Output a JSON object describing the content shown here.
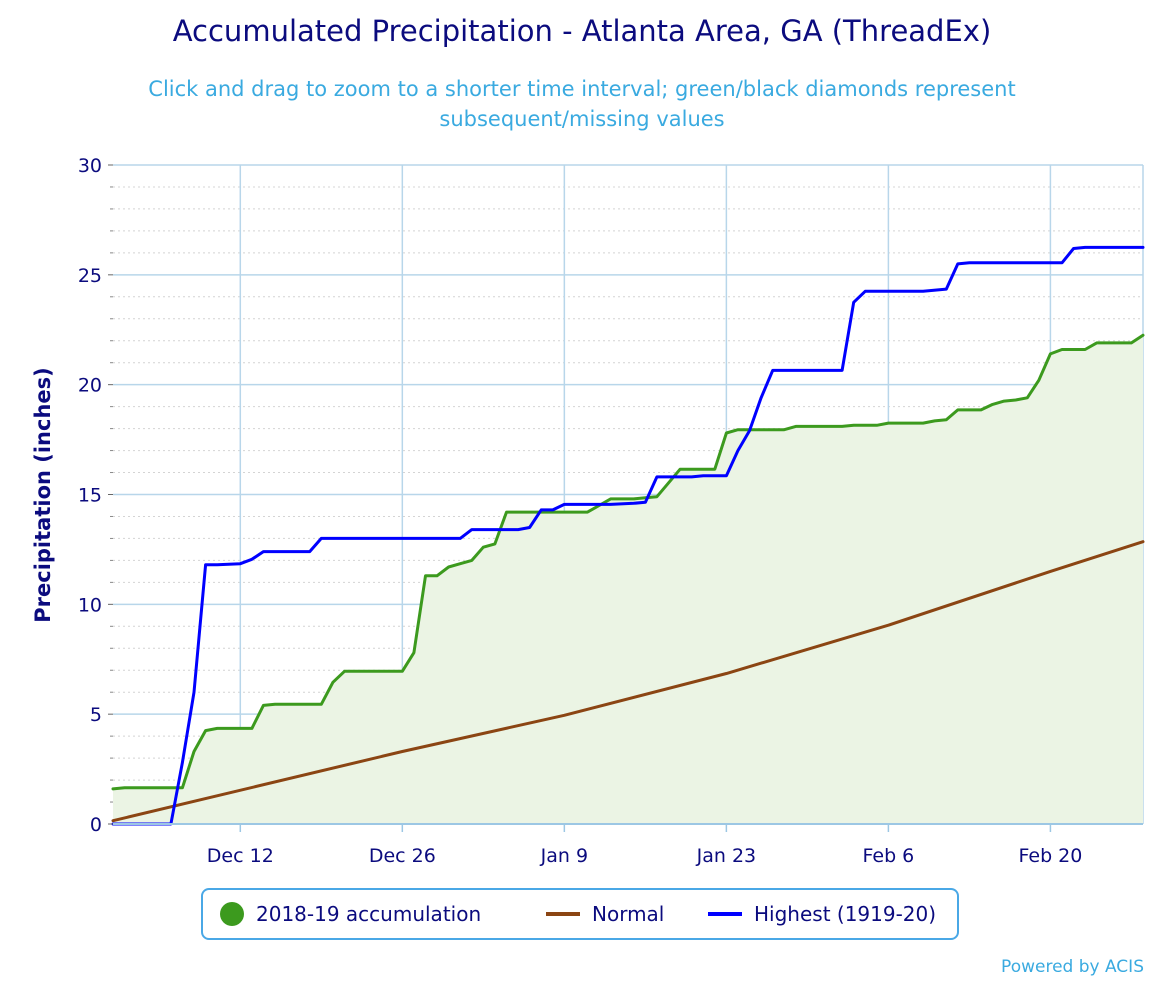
{
  "title": "Accumulated Precipitation - Atlanta Area, GA (ThreadEx)",
  "subtitle": "Click and drag to zoom to a shorter time interval; green/black diamonds represent subsequent/missing values",
  "credit": "Powered by ACIS",
  "legend": {
    "accum": "2018-19 accumulation",
    "normal": "Normal",
    "highest": "Highest (1919-20)"
  },
  "colors": {
    "accum": "#3c9a1e",
    "accum_fill": "#ebf4e4",
    "normal": "#8b4513",
    "highest": "#0000ff",
    "grid": "#b8d6ea",
    "axis_text": "#0b0b7e"
  },
  "chart_data": {
    "type": "line",
    "ylabel": "Precipitation (inches)",
    "xlabel": "",
    "x_ticks": [
      "Dec 12",
      "Dec 26",
      "Jan 9",
      "Jan 23",
      "Feb 6",
      "Feb 20"
    ],
    "y_ticks": [
      0,
      5,
      10,
      15,
      20,
      25,
      30
    ],
    "ylim": [
      0,
      30
    ],
    "xlim": [
      "2018-12-01",
      "2019-02-28"
    ],
    "grid": true,
    "legend_position": "bottom",
    "series": [
      {
        "name": "2018-19 accumulation",
        "key": "accum",
        "filled": true,
        "points": [
          [
            "2018-12-01",
            1.6
          ],
          [
            "2018-12-02",
            1.65
          ],
          [
            "2018-12-07",
            1.65
          ],
          [
            "2018-12-08",
            3.3
          ],
          [
            "2018-12-09",
            4.25
          ],
          [
            "2018-12-10",
            4.35
          ],
          [
            "2018-12-13",
            4.35
          ],
          [
            "2018-12-14",
            5.4
          ],
          [
            "2018-12-15",
            5.45
          ],
          [
            "2018-12-19",
            5.45
          ],
          [
            "2018-12-20",
            6.45
          ],
          [
            "2018-12-21",
            6.95
          ],
          [
            "2018-12-26",
            6.95
          ],
          [
            "2018-12-27",
            7.8
          ],
          [
            "2018-12-28",
            11.3
          ],
          [
            "2018-12-29",
            11.3
          ],
          [
            "2018-12-30",
            11.7
          ],
          [
            "2018-12-31",
            11.85
          ],
          [
            "2019-01-01",
            12.0
          ],
          [
            "2019-01-02",
            12.6
          ],
          [
            "2019-01-03",
            12.75
          ],
          [
            "2019-01-04",
            14.2
          ],
          [
            "2019-01-11",
            14.2
          ],
          [
            "2019-01-12",
            14.5
          ],
          [
            "2019-01-13",
            14.8
          ],
          [
            "2019-01-15",
            14.8
          ],
          [
            "2019-01-16",
            14.85
          ],
          [
            "2019-01-17",
            14.9
          ],
          [
            "2019-01-19",
            16.15
          ],
          [
            "2019-01-22",
            16.15
          ],
          [
            "2019-01-23",
            17.8
          ],
          [
            "2019-01-24",
            17.95
          ],
          [
            "2019-01-28",
            17.95
          ],
          [
            "2019-01-29",
            18.1
          ],
          [
            "2019-02-02",
            18.1
          ],
          [
            "2019-02-03",
            18.15
          ],
          [
            "2019-02-05",
            18.15
          ],
          [
            "2019-02-06",
            18.25
          ],
          [
            "2019-02-09",
            18.25
          ],
          [
            "2019-02-10",
            18.35
          ],
          [
            "2019-02-11",
            18.4
          ],
          [
            "2019-02-12",
            18.85
          ],
          [
            "2019-02-14",
            18.85
          ],
          [
            "2019-02-15",
            19.1
          ],
          [
            "2019-02-16",
            19.25
          ],
          [
            "2019-02-17",
            19.3
          ],
          [
            "2019-02-18",
            19.4
          ],
          [
            "2019-02-19",
            20.2
          ],
          [
            "2019-02-20",
            21.4
          ],
          [
            "2019-02-21",
            21.6
          ],
          [
            "2019-02-23",
            21.6
          ],
          [
            "2019-02-24",
            21.9
          ],
          [
            "2019-02-27",
            21.9
          ],
          [
            "2019-02-28",
            22.25
          ]
        ]
      },
      {
        "name": "Normal",
        "key": "normal",
        "points": [
          [
            "2018-12-01",
            0.15
          ],
          [
            "2018-12-26",
            3.3
          ],
          [
            "2019-01-09",
            4.95
          ],
          [
            "2019-01-23",
            6.85
          ],
          [
            "2019-02-06",
            9.05
          ],
          [
            "2019-02-20",
            11.5
          ],
          [
            "2019-02-28",
            12.85
          ]
        ]
      },
      {
        "name": "Highest (1919-20)",
        "key": "highest",
        "points": [
          [
            "2018-12-01",
            0.0
          ],
          [
            "2018-12-06",
            0.0
          ],
          [
            "2018-12-07",
            2.8
          ],
          [
            "2018-12-08",
            6.0
          ],
          [
            "2018-12-09",
            11.8
          ],
          [
            "2018-12-10",
            11.8
          ],
          [
            "2018-12-12",
            11.85
          ],
          [
            "2018-12-13",
            12.05
          ],
          [
            "2018-12-14",
            12.4
          ],
          [
            "2018-12-18",
            12.4
          ],
          [
            "2018-12-19",
            13.0
          ],
          [
            "2018-12-31",
            13.0
          ],
          [
            "2019-01-01",
            13.4
          ],
          [
            "2019-01-05",
            13.4
          ],
          [
            "2019-01-06",
            13.5
          ],
          [
            "2019-01-07",
            14.3
          ],
          [
            "2019-01-08",
            14.3
          ],
          [
            "2019-01-09",
            14.55
          ],
          [
            "2019-01-13",
            14.55
          ],
          [
            "2019-01-15",
            14.6
          ],
          [
            "2019-01-16",
            14.65
          ],
          [
            "2019-01-17",
            15.8
          ],
          [
            "2019-01-20",
            15.8
          ],
          [
            "2019-01-21",
            15.85
          ],
          [
            "2019-01-23",
            15.85
          ],
          [
            "2019-01-24",
            17.0
          ],
          [
            "2019-01-25",
            17.9
          ],
          [
            "2019-01-26",
            19.4
          ],
          [
            "2019-01-27",
            20.65
          ],
          [
            "2019-01-28",
            20.65
          ],
          [
            "2019-02-02",
            20.65
          ],
          [
            "2019-02-03",
            23.75
          ],
          [
            "2019-02-04",
            24.25
          ],
          [
            "2019-02-09",
            24.25
          ],
          [
            "2019-02-11",
            24.35
          ],
          [
            "2019-02-12",
            25.5
          ],
          [
            "2019-02-13",
            25.55
          ],
          [
            "2019-02-21",
            25.55
          ],
          [
            "2019-02-22",
            26.2
          ],
          [
            "2019-02-23",
            26.25
          ],
          [
            "2019-02-28",
            26.25
          ]
        ]
      }
    ]
  }
}
